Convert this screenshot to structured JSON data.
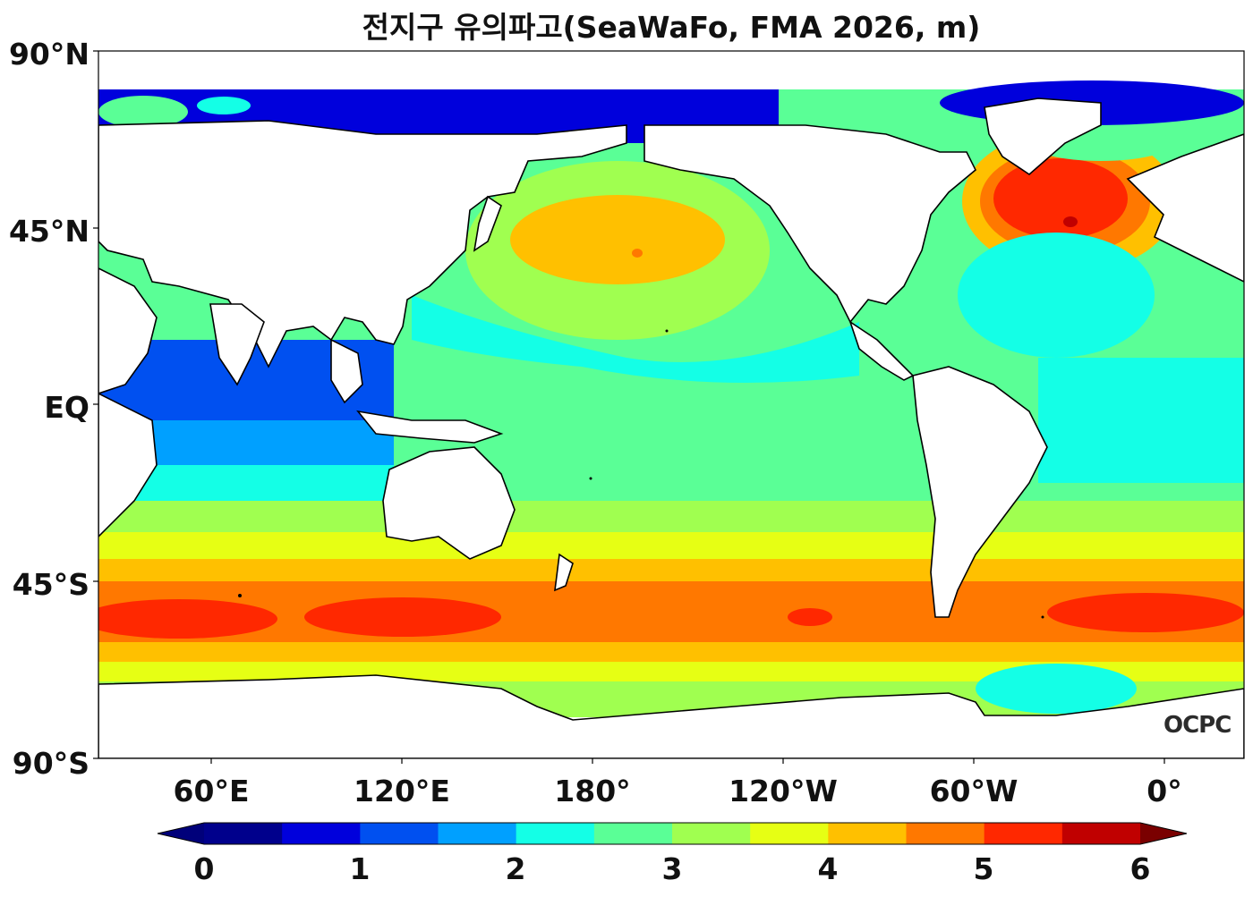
{
  "map": {
    "title": "전지구 유의파고(SeaWaFo, FMA 2026, m)",
    "lat_labels": [
      "90°N",
      "45°N",
      "EQ",
      "45°S",
      "90°S"
    ],
    "lon_labels": [
      "60°E",
      "120°E",
      "180°",
      "120°W",
      "60°W",
      "0°"
    ],
    "watermark": "OCPC"
  },
  "colorbar": {
    "tick_labels": [
      "0",
      "1",
      "2",
      "3",
      "4",
      "5",
      "6"
    ],
    "colors": [
      "#00008c",
      "#0000dc",
      "#0050f0",
      "#00a0ff",
      "#14ffe6",
      "#5aff96",
      "#a0ff50",
      "#e6ff14",
      "#ffc000",
      "#ff7800",
      "#ff2800",
      "#c00000",
      "#9a0000"
    ],
    "under_color": "#00007a",
    "over_color": "#7a0000"
  }
}
